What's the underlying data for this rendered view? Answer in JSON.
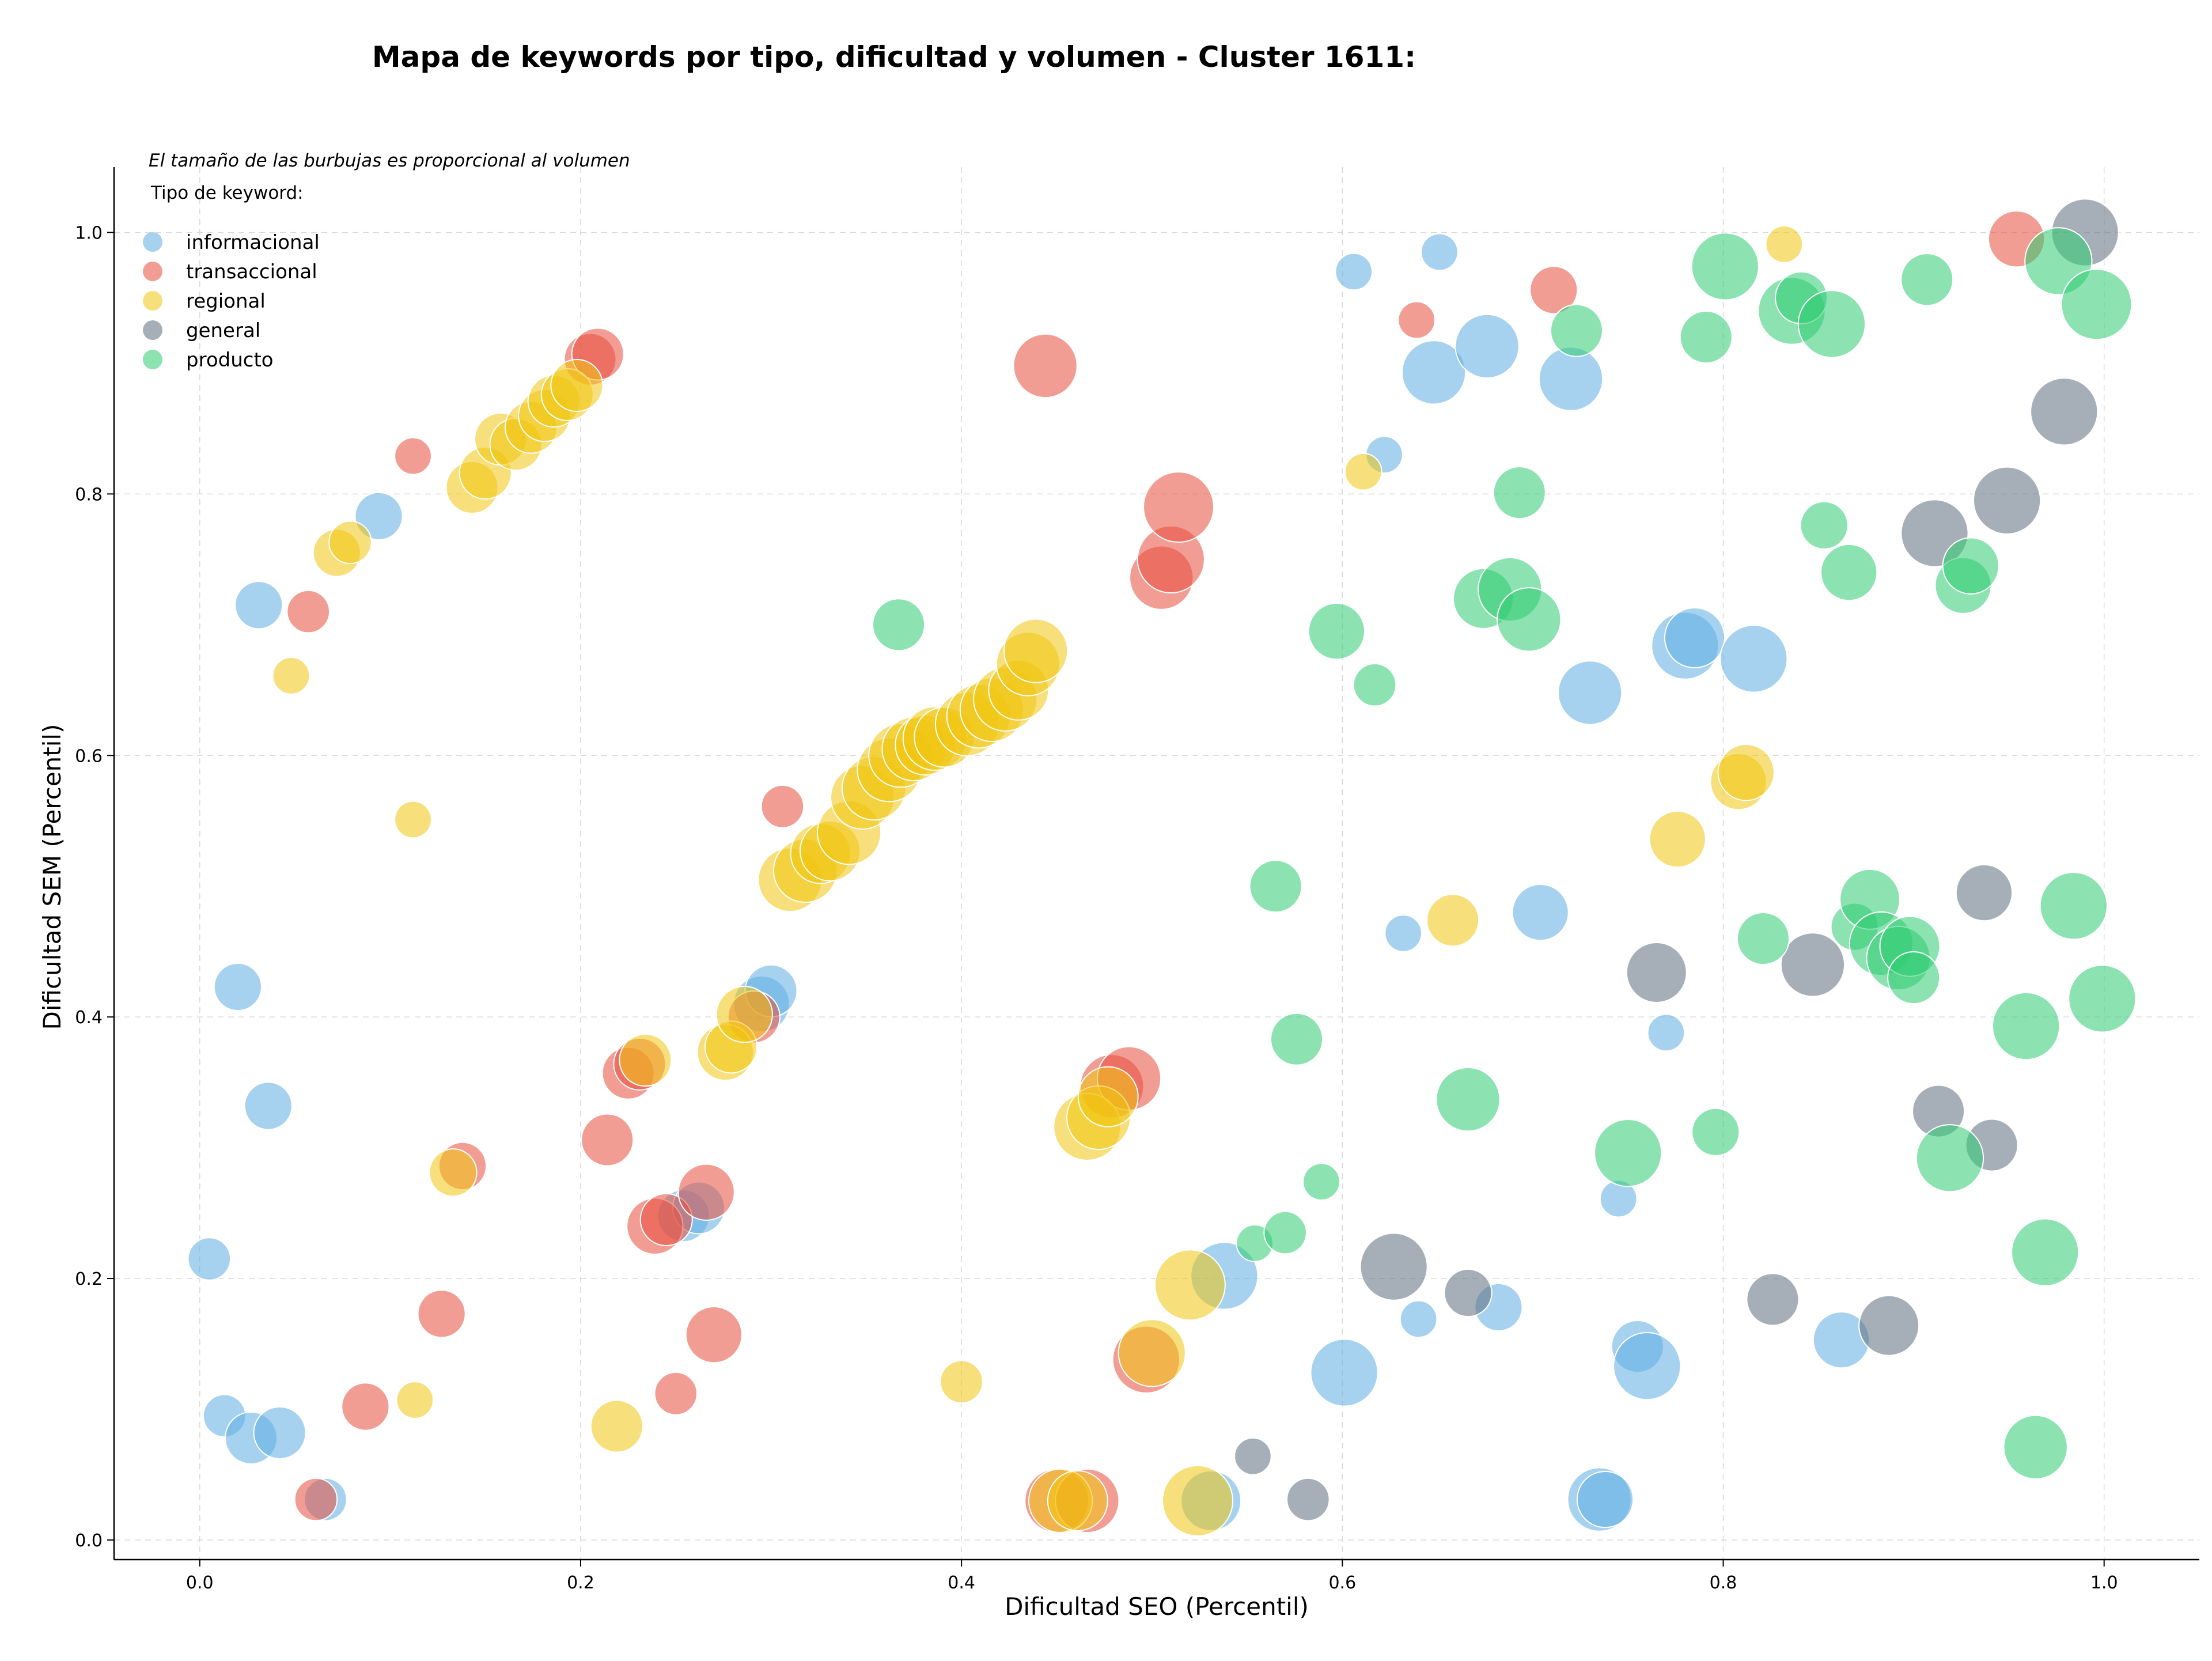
{
  "chart_data": {
    "type": "scatter",
    "title": "Mapa de keywords por tipo, dificultad y volumen - Cluster 1611:",
    "note": "El tamaño de las burbujas es proporcional al volumen",
    "xlabel": "Dificultad SEO (Percentil)",
    "ylabel": "Dificultad SEM (Percentil)",
    "xlim": [
      -0.045,
      1.05
    ],
    "ylim": [
      -0.015,
      1.05
    ],
    "xticks": [
      "0.0",
      "0.2",
      "0.4",
      "0.6",
      "0.8",
      "1.0"
    ],
    "yticks": [
      "0.0",
      "0.2",
      "0.4",
      "0.6",
      "0.8",
      "1.0"
    ],
    "grid": true,
    "legend": {
      "title": "Tipo de keyword:",
      "placement": "top-left"
    },
    "colors": {
      "informacional": "#5dade2",
      "transaccional": "#e74c3c",
      "regional": "#f1c40f",
      "general": "#5d6d7e",
      "producto": "#2ecc71"
    },
    "series": [
      {
        "name": "informacional",
        "points": [
          [
            0.005,
            0.215,
            2
          ],
          [
            0.013,
            0.095,
            2
          ],
          [
            0.02,
            0.423,
            2.5
          ],
          [
            0.027,
            0.078,
            3
          ],
          [
            0.031,
            0.715,
            2.5
          ],
          [
            0.036,
            0.332,
            2.5
          ],
          [
            0.042,
            0.082,
            3
          ],
          [
            0.066,
            0.031,
            2
          ],
          [
            0.094,
            0.783,
            2.5
          ],
          [
            0.254,
            0.248,
            3
          ],
          [
            0.262,
            0.254,
            3
          ],
          [
            0.295,
            0.41,
            3.5
          ],
          [
            0.3,
            0.42,
            3
          ],
          [
            0.538,
            0.202,
            5
          ],
          [
            0.531,
            0.03,
            4
          ],
          [
            0.601,
            0.128,
            5
          ],
          [
            0.606,
            0.97,
            1.5
          ],
          [
            0.622,
            0.83,
            1.5
          ],
          [
            0.632,
            0.464,
            1.5
          ],
          [
            0.64,
            0.169,
            1.5
          ],
          [
            0.651,
            0.985,
            1.5
          ],
          [
            0.648,
            0.893,
            4.5
          ],
          [
            0.676,
            0.913,
            4.5
          ],
          [
            0.682,
            0.178,
            2.5
          ],
          [
            0.704,
            0.48,
            3.5
          ],
          [
            0.72,
            0.888,
            4.5
          ],
          [
            0.73,
            0.648,
            4.5
          ],
          [
            0.735,
            0.031,
            4.5
          ],
          [
            0.738,
            0.031,
            3.5
          ],
          [
            0.745,
            0.261,
            1.5
          ],
          [
            0.755,
            0.148,
            3
          ],
          [
            0.76,
            0.133,
            5
          ],
          [
            0.77,
            0.388,
            1.5
          ],
          [
            0.78,
            0.684,
            5
          ],
          [
            0.785,
            0.69,
            4
          ],
          [
            0.816,
            0.674,
            5
          ],
          [
            0.862,
            0.153,
            3.5
          ]
        ]
      },
      {
        "name": "transaccional",
        "points": [
          [
            0.057,
            0.71,
            2
          ],
          [
            0.061,
            0.031,
            2
          ],
          [
            0.087,
            0.102,
            2.5
          ],
          [
            0.112,
            0.829,
            1.5
          ],
          [
            0.127,
            0.173,
            2.5
          ],
          [
            0.138,
            0.286,
            2.5
          ],
          [
            0.205,
            0.903,
            3
          ],
          [
            0.209,
            0.907,
            3
          ],
          [
            0.214,
            0.306,
            3
          ],
          [
            0.225,
            0.357,
            3
          ],
          [
            0.231,
            0.364,
            3
          ],
          [
            0.239,
            0.24,
            3.5
          ],
          [
            0.245,
            0.245,
            3
          ],
          [
            0.25,
            0.112,
            2
          ],
          [
            0.266,
            0.266,
            3.5
          ],
          [
            0.27,
            0.157,
            3.5
          ],
          [
            0.291,
            0.4,
            3
          ],
          [
            0.306,
            0.561,
            2
          ],
          [
            0.444,
            0.898,
            4.5
          ],
          [
            0.45,
            0.03,
            4.5
          ],
          [
            0.466,
            0.03,
            4.5
          ],
          [
            0.479,
            0.347,
            4.5
          ],
          [
            0.488,
            0.353,
            4.5
          ],
          [
            0.497,
            0.138,
            5
          ],
          [
            0.505,
            0.736,
            4.5
          ],
          [
            0.51,
            0.75,
            5
          ],
          [
            0.514,
            0.79,
            5.5
          ],
          [
            0.639,
            0.933,
            1.5
          ],
          [
            0.711,
            0.956,
            2.5
          ],
          [
            0.954,
            0.995,
            3.5
          ]
        ]
      },
      {
        "name": "regional",
        "points": [
          [
            0.048,
            0.661,
            1.5
          ],
          [
            0.072,
            0.755,
            2.5
          ],
          [
            0.079,
            0.763,
            2
          ],
          [
            0.112,
            0.551,
            1.5
          ],
          [
            0.113,
            0.107,
            1.5
          ],
          [
            0.133,
            0.281,
            2.5
          ],
          [
            0.143,
            0.805,
            3
          ],
          [
            0.15,
            0.816,
            3
          ],
          [
            0.158,
            0.842,
            3
          ],
          [
            0.166,
            0.838,
            3
          ],
          [
            0.174,
            0.851,
            3
          ],
          [
            0.181,
            0.86,
            3
          ],
          [
            0.186,
            0.871,
            3
          ],
          [
            0.193,
            0.876,
            3
          ],
          [
            0.198,
            0.883,
            3
          ],
          [
            0.219,
            0.087,
            3
          ],
          [
            0.234,
            0.367,
            3
          ],
          [
            0.276,
            0.373,
            3.5
          ],
          [
            0.279,
            0.377,
            3
          ],
          [
            0.286,
            0.402,
            3.5
          ],
          [
            0.31,
            0.505,
            4.5
          ],
          [
            0.318,
            0.512,
            4.5
          ],
          [
            0.326,
            0.525,
            4
          ],
          [
            0.331,
            0.527,
            4
          ],
          [
            0.341,
            0.541,
            4.5
          ],
          [
            0.348,
            0.568,
            4.5
          ],
          [
            0.354,
            0.575,
            4.5
          ],
          [
            0.362,
            0.589,
            4.5
          ],
          [
            0.368,
            0.6,
            4.5
          ],
          [
            0.375,
            0.605,
            4.5
          ],
          [
            0.381,
            0.608,
            4
          ],
          [
            0.386,
            0.613,
            4.5
          ],
          [
            0.391,
            0.614,
            4
          ],
          [
            0.403,
            0.624,
            4.5
          ],
          [
            0.409,
            0.63,
            4.5
          ],
          [
            0.416,
            0.635,
            4.5
          ],
          [
            0.423,
            0.643,
            4.5
          ],
          [
            0.43,
            0.65,
            4
          ],
          [
            0.435,
            0.67,
            4.5
          ],
          [
            0.439,
            0.68,
            4.5
          ],
          [
            0.4,
            0.121,
            2
          ],
          [
            0.452,
            0.03,
            4.5
          ],
          [
            0.461,
            0.03,
            4
          ],
          [
            0.466,
            0.316,
            5
          ],
          [
            0.472,
            0.323,
            4.5
          ],
          [
            0.477,
            0.339,
            4
          ],
          [
            0.5,
            0.143,
            5
          ],
          [
            0.52,
            0.195,
            5.5
          ],
          [
            0.524,
            0.03,
            5.5
          ],
          [
            0.611,
            0.817,
            1.5
          ],
          [
            0.658,
            0.474,
            3
          ],
          [
            0.776,
            0.536,
            3.5
          ],
          [
            0.808,
            0.58,
            3.5
          ],
          [
            0.812,
            0.587,
            3.5
          ],
          [
            0.832,
            0.991,
            1.5
          ]
        ]
      },
      {
        "name": "general",
        "points": [
          [
            0.553,
            0.064,
            1.5
          ],
          [
            0.582,
            0.031,
            2
          ],
          [
            0.627,
            0.209,
            5
          ],
          [
            0.666,
            0.189,
            2.5
          ],
          [
            0.765,
            0.434,
            4
          ],
          [
            0.826,
            0.184,
            3
          ],
          [
            0.847,
            0.44,
            4.5
          ],
          [
            0.887,
            0.164,
            4
          ],
          [
            0.911,
            0.77,
            5
          ],
          [
            0.913,
            0.328,
            3
          ],
          [
            0.937,
            0.495,
            3.5
          ],
          [
            0.941,
            0.302,
            3
          ],
          [
            0.949,
            0.795,
            5
          ],
          [
            0.979,
            0.863,
            5
          ],
          [
            0.99,
            1.0,
            5
          ]
        ]
      },
      {
        "name": "producto",
        "points": [
          [
            0.367,
            0.7,
            3
          ],
          [
            0.554,
            0.227,
            1.5
          ],
          [
            0.565,
            0.5,
            3
          ],
          [
            0.57,
            0.235,
            2
          ],
          [
            0.576,
            0.383,
            3
          ],
          [
            0.589,
            0.274,
            1.5
          ],
          [
            0.597,
            0.695,
            3.5
          ],
          [
            0.617,
            0.654,
            2
          ],
          [
            0.666,
            0.337,
            4.5
          ],
          [
            0.674,
            0.72,
            4
          ],
          [
            0.688,
            0.727,
            4.5
          ],
          [
            0.693,
            0.801,
            3
          ],
          [
            0.698,
            0.704,
            4.5
          ],
          [
            0.723,
            0.925,
            3
          ],
          [
            0.75,
            0.296,
            5
          ],
          [
            0.791,
            0.92,
            3
          ],
          [
            0.796,
            0.312,
            2.5
          ],
          [
            0.801,
            0.974,
            5
          ],
          [
            0.821,
            0.46,
            3
          ],
          [
            0.836,
            0.94,
            5
          ],
          [
            0.841,
            0.95,
            3
          ],
          [
            0.853,
            0.776,
            2.5
          ],
          [
            0.857,
            0.93,
            5
          ],
          [
            0.866,
            0.74,
            3.5
          ],
          [
            0.869,
            0.469,
            2.5
          ],
          [
            0.877,
            0.49,
            4
          ],
          [
            0.883,
            0.456,
            4.5
          ],
          [
            0.892,
            0.445,
            4.5
          ],
          [
            0.898,
            0.454,
            4
          ],
          [
            0.9,
            0.43,
            3
          ],
          [
            0.907,
            0.964,
            3
          ],
          [
            0.919,
            0.292,
            5
          ],
          [
            0.926,
            0.73,
            3.5
          ],
          [
            0.93,
            0.745,
            3.5
          ],
          [
            0.959,
            0.393,
            5
          ],
          [
            0.964,
            0.071,
            4.5
          ],
          [
            0.969,
            0.22,
            5
          ],
          [
            0.976,
            0.978,
            5
          ],
          [
            0.984,
            0.485,
            5
          ],
          [
            0.996,
            0.945,
            5.5
          ],
          [
            0.999,
            0.414,
            5
          ]
        ]
      }
    ]
  }
}
